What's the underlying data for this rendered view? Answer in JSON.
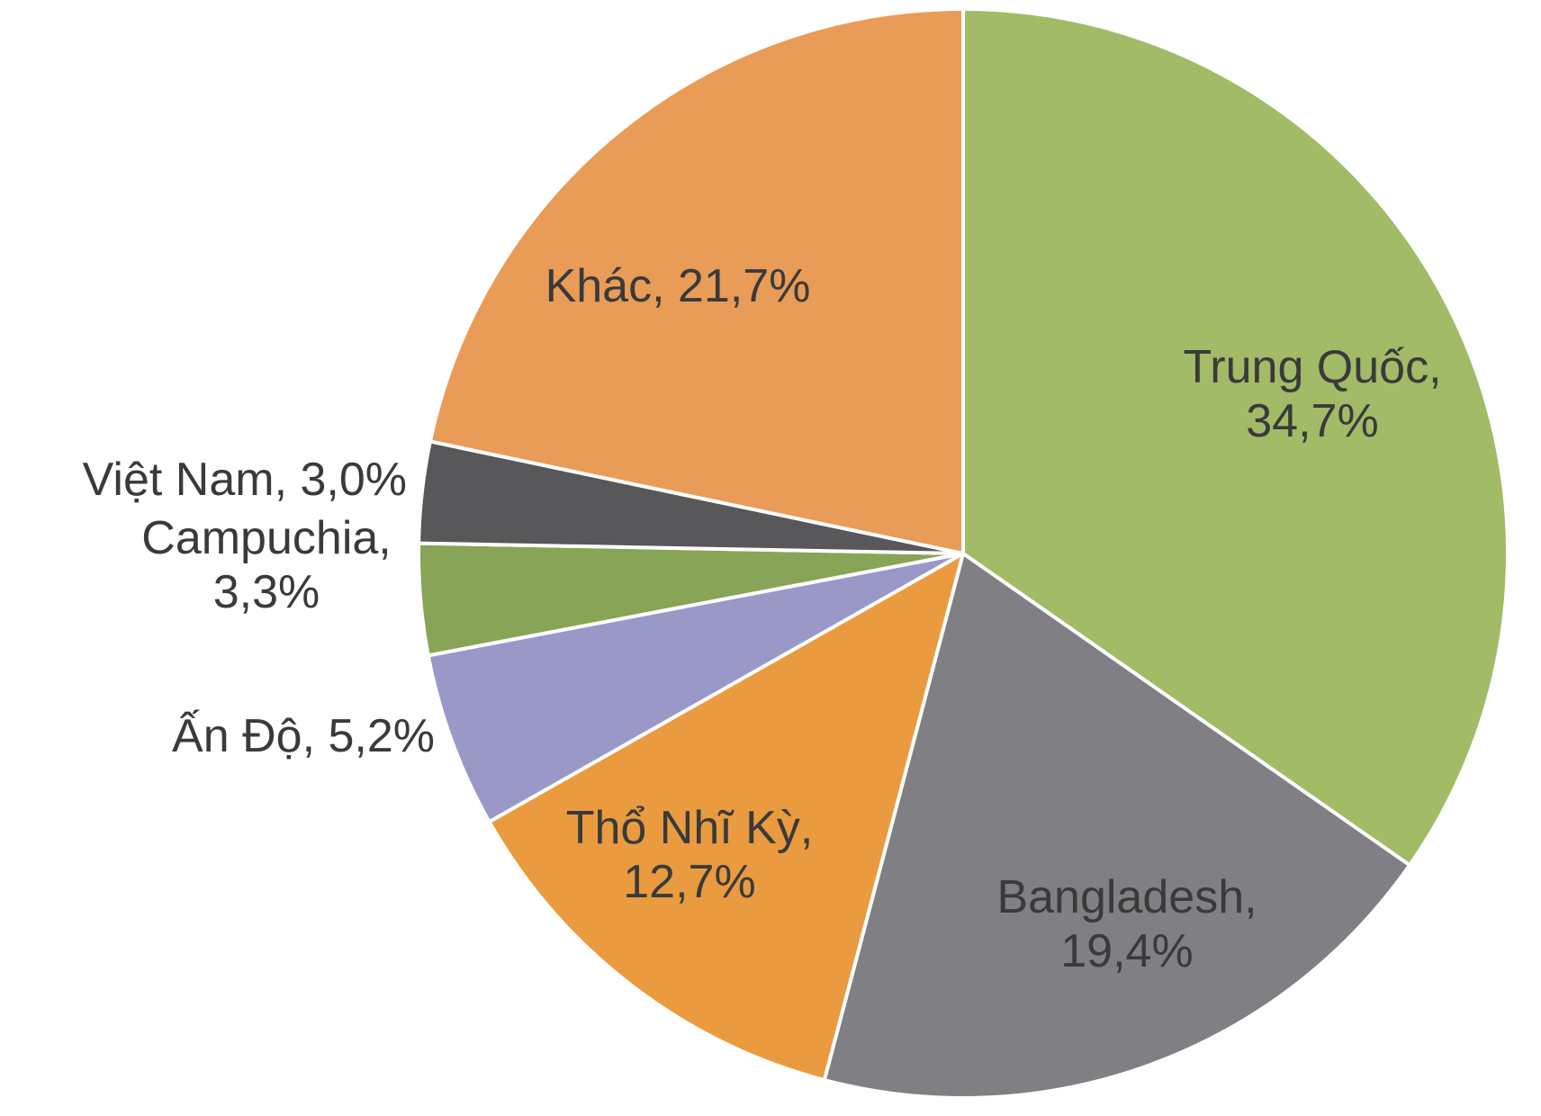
{
  "chart_data": {
    "type": "pie",
    "title": "",
    "slices": [
      {
        "name": "Trung Quốc",
        "value": 34.7,
        "color": "#a1bb67",
        "label_lines": [
          "Trung Quốc,",
          "34,7%"
        ]
      },
      {
        "name": "Bangladesh",
        "value": 19.4,
        "color": "#808084",
        "label_lines": [
          "Bangladesh,",
          "19,4%"
        ]
      },
      {
        "name": "Thổ Nhĩ Kỳ",
        "value": 12.7,
        "color": "#ea9b3f",
        "label_lines": [
          "Thổ Nhĩ Kỳ,",
          "12,7%"
        ]
      },
      {
        "name": "Ấn Độ",
        "value": 5.2,
        "color": "#9a98c7",
        "label_lines": [
          "Ấn Độ, 5,2%"
        ]
      },
      {
        "name": "Campuchia",
        "value": 3.3,
        "color": "#88a456",
        "label_lines": [
          "Campuchia,",
          "3,3%"
        ]
      },
      {
        "name": "Việt Nam",
        "value": 3.0,
        "color": "#58585b",
        "label_lines": [
          "Việt Nam, 3,0%"
        ]
      },
      {
        "name": "Khác",
        "value": 21.7,
        "color": "#e99c57",
        "label_lines": [
          "Khác, 21,7%"
        ]
      }
    ],
    "start_angle": "12 o'clock",
    "direction": "clockwise",
    "legend": "none"
  }
}
